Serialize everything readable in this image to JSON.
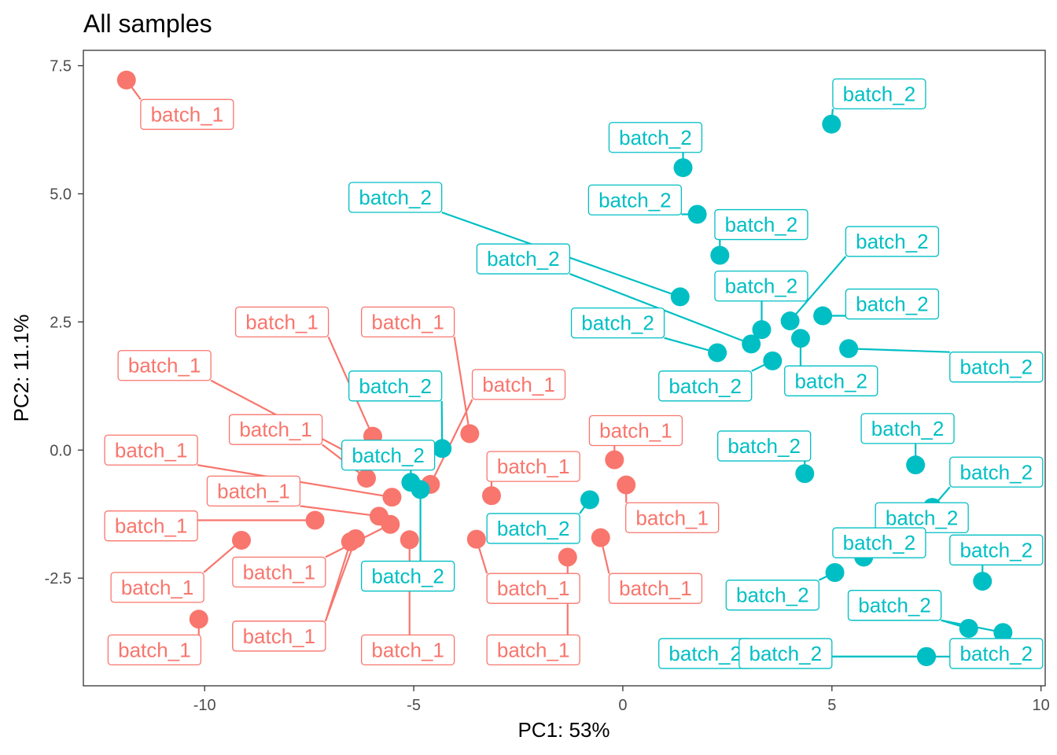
{
  "chart_data": {
    "type": "scatter",
    "title": "All samples",
    "xlabel": "PC1: 53%",
    "ylabel": "PC2: 11.1%",
    "xlim": [
      -12.9,
      10.1
    ],
    "ylim": [
      -4.6,
      7.8
    ],
    "xticks": [
      -10,
      -5,
      0,
      5,
      10
    ],
    "xtick_labels": [
      "-10",
      "-5",
      "0",
      "5",
      "10"
    ],
    "yticks": [
      -2.5,
      0.0,
      2.5,
      5.0,
      7.5
    ],
    "ytick_labels": [
      "-2.5",
      "0.0",
      "2.5",
      "5.0",
      "7.5"
    ],
    "grid": false,
    "legend": "none",
    "colors": {
      "batch_1": "#F8766D",
      "batch_2": "#00BFC4"
    },
    "series": [
      {
        "name": "batch_1",
        "color": "#F8766D",
        "points": [
          {
            "x": -11.87,
            "y": 7.22,
            "label": "batch_1",
            "lx": -10.42,
            "ly": 6.55
          },
          {
            "x": -5.98,
            "y": 0.27,
            "label": "batch_1",
            "lx": -8.15,
            "ly": 2.5
          },
          {
            "x": -3.66,
            "y": 0.32,
            "label": "batch_1",
            "lx": -5.14,
            "ly": 2.5
          },
          {
            "x": -6.38,
            "y": -0.13,
            "label": "batch_1",
            "lx": -10.96,
            "ly": 1.65
          },
          {
            "x": -4.6,
            "y": -0.67,
            "label": "batch_1",
            "lx": -2.49,
            "ly": 1.28
          },
          {
            "x": -6.13,
            "y": -0.55,
            "label": "batch_1",
            "lx": -8.3,
            "ly": 0.4
          },
          {
            "x": -5.52,
            "y": -0.92,
            "label": "batch_1",
            "lx": -11.28,
            "ly": 0.0
          },
          {
            "x": -0.2,
            "y": -0.19,
            "label": "batch_1",
            "lx": 0.31,
            "ly": 0.38
          },
          {
            "x": -3.14,
            "y": -0.89,
            "label": "batch_1",
            "lx": -2.14,
            "ly": -0.32
          },
          {
            "x": 0.08,
            "y": -0.68,
            "label": "batch_1",
            "lx": 1.18,
            "ly": -1.32
          },
          {
            "x": -5.83,
            "y": -1.29,
            "label": "batch_1",
            "lx": -8.83,
            "ly": -0.8
          },
          {
            "x": -7.36,
            "y": -1.37,
            "label": "batch_1",
            "lx": -11.28,
            "ly": -1.48
          },
          {
            "x": -5.56,
            "y": -1.45,
            "label": "batch_1",
            "lx": -8.22,
            "ly": -2.38
          },
          {
            "x": -9.12,
            "y": -1.76,
            "label": "batch_1",
            "lx": -11.13,
            "ly": -2.68
          },
          {
            "x": -6.51,
            "y": -1.79,
            "label": "batch_1",
            "lx": -8.22,
            "ly": -3.63
          },
          {
            "x": -6.39,
            "y": -1.73,
            "label": "batch_1",
            "lx": -8.22,
            "ly": -3.63
          },
          {
            "x": -3.5,
            "y": -1.74,
            "label": "batch_1",
            "lx": -2.14,
            "ly": -2.7
          },
          {
            "x": -0.53,
            "y": -1.71,
            "label": "batch_1",
            "lx": 0.78,
            "ly": -2.7
          },
          {
            "x": -1.32,
            "y": -2.09,
            "label": "batch_1",
            "lx": -2.14,
            "ly": -3.9
          },
          {
            "x": -5.1,
            "y": -1.75,
            "label": "batch_1",
            "lx": -5.14,
            "ly": -3.9
          },
          {
            "x": -10.14,
            "y": -3.3,
            "label": "batch_1",
            "lx": -11.2,
            "ly": -3.9
          }
        ]
      },
      {
        "name": "batch_2",
        "color": "#00BFC4",
        "points": [
          {
            "x": 4.99,
            "y": 6.36,
            "label": "batch_2",
            "lx": 6.13,
            "ly": 6.95
          },
          {
            "x": 1.44,
            "y": 5.51,
            "label": "batch_2",
            "lx": 0.78,
            "ly": 6.1
          },
          {
            "x": 1.78,
            "y": 4.6,
            "label": "batch_2",
            "lx": 0.29,
            "ly": 4.88
          },
          {
            "x": 2.32,
            "y": 3.8,
            "label": "batch_2",
            "lx": 3.31,
            "ly": 4.4
          },
          {
            "x": 1.37,
            "y": 2.99,
            "label": "batch_2",
            "lx": -5.44,
            "ly": 4.93
          },
          {
            "x": 3.07,
            "y": 2.07,
            "label": "batch_2",
            "lx": -2.38,
            "ly": 3.73
          },
          {
            "x": 3.32,
            "y": 2.35,
            "label": "batch_2",
            "lx": 3.31,
            "ly": 3.2
          },
          {
            "x": 4.0,
            "y": 2.52,
            "label": "batch_2",
            "lx": 6.44,
            "ly": 4.07
          },
          {
            "x": 4.78,
            "y": 2.62,
            "label": "batch_2",
            "lx": 6.44,
            "ly": 2.85
          },
          {
            "x": 2.26,
            "y": 1.9,
            "label": "batch_2",
            "lx": -0.12,
            "ly": 2.48
          },
          {
            "x": 4.25,
            "y": 2.18,
            "label": "batch_2",
            "lx": 4.98,
            "ly": 1.35
          },
          {
            "x": 3.58,
            "y": 1.74,
            "label": "batch_2",
            "lx": 1.97,
            "ly": 1.25
          },
          {
            "x": 5.4,
            "y": 1.98,
            "label": "batch_2",
            "lx": 8.93,
            "ly": 1.62
          },
          {
            "x": -4.32,
            "y": 0.03,
            "label": "batch_2",
            "lx": -5.44,
            "ly": 1.25
          },
          {
            "x": -5.07,
            "y": -0.63,
            "label": "batch_2",
            "lx": -5.61,
            "ly": -0.1
          },
          {
            "x": -4.84,
            "y": -0.77,
            "label": "batch_2",
            "lx": -5.14,
            "ly": -2.46
          },
          {
            "x": -0.79,
            "y": -0.97,
            "label": "batch_2",
            "lx": -2.14,
            "ly": -1.53
          },
          {
            "x": 4.35,
            "y": -0.46,
            "label": "batch_2",
            "lx": 3.38,
            "ly": 0.08
          },
          {
            "x": 7.0,
            "y": -0.29,
            "label": "batch_2",
            "lx": 6.81,
            "ly": 0.42
          },
          {
            "x": 7.4,
            "y": -1.12,
            "label": "batch_2",
            "lx": 8.93,
            "ly": -0.43
          },
          {
            "x": 7.4,
            "y": -1.12,
            "label": "batch_2",
            "lx": 7.15,
            "ly": -1.32
          },
          {
            "x": 5.76,
            "y": -2.09,
            "label": "batch_2",
            "lx": 6.13,
            "ly": -1.81
          },
          {
            "x": 8.6,
            "y": -2.56,
            "label": "batch_2",
            "lx": 8.93,
            "ly": -1.95
          },
          {
            "x": 5.07,
            "y": -2.39,
            "label": "batch_2",
            "lx": 3.58,
            "ly": -2.83
          },
          {
            "x": 8.27,
            "y": -3.48,
            "label": "batch_2",
            "lx": 6.5,
            "ly": -3.03
          },
          {
            "x": 9.09,
            "y": -3.56,
            "label": "batch_2",
            "lx": 6.5,
            "ly": -3.03
          },
          {
            "x": 7.26,
            "y": -4.03,
            "label": "batch_2",
            "lx": 1.97,
            "ly": -3.97
          },
          {
            "x": 7.26,
            "y": -4.03,
            "label": "batch_2",
            "lx": 8.93,
            "ly": -3.97
          },
          {
            "x": 7.26,
            "y": -4.03,
            "label": "batch_2",
            "lx": 3.89,
            "ly": -3.97
          }
        ]
      }
    ]
  }
}
